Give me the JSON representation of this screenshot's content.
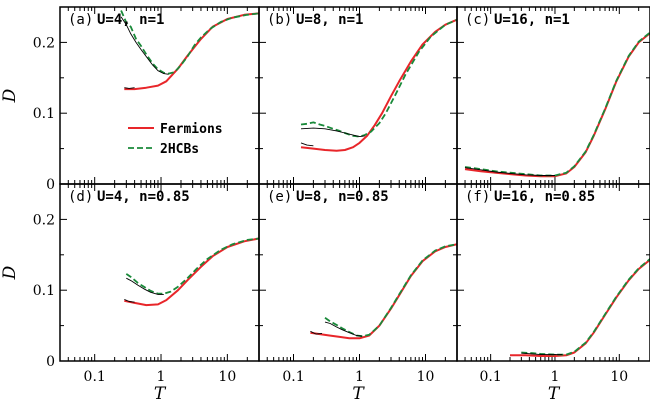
{
  "colors": {
    "fermions": "#e8262a",
    "hcb": "#1a8a3a",
    "thin": "#000000",
    "frame": "#000000"
  },
  "legend": {
    "fermions": "Fermions",
    "hcb": "2HCBs"
  },
  "axes": {
    "xlabel": "T",
    "ylabel": "D",
    "xscale": "log",
    "xlim": [
      0.03,
      30
    ],
    "ylim_top": [
      0,
      0.25
    ],
    "ylim_bottom": [
      0,
      0.25
    ],
    "x_ticks": [
      {
        "value": 0.1,
        "label": "0.1"
      },
      {
        "value": 1,
        "label": "1"
      },
      {
        "value": 10,
        "label": "10"
      }
    ],
    "y_ticks_top": [
      {
        "value": 0,
        "label": "0"
      },
      {
        "value": 0.1,
        "label": "0.1"
      },
      {
        "value": 0.2,
        "label": "0.2"
      }
    ],
    "y_ticks_bottom": [
      {
        "value": 0,
        "label": "0"
      },
      {
        "value": 0.1,
        "label": "0.1"
      },
      {
        "value": 0.2,
        "label": "0.2"
      }
    ]
  },
  "chart_data": [
    {
      "type": "line",
      "tag": "(a)",
      "title": "U=4, n=1",
      "series": [
        {
          "name": "Fermions",
          "style": "fermions",
          "x": [
            0.28,
            0.4,
            0.6,
            0.9,
            1.2,
            1.8,
            2.5,
            4,
            6,
            10,
            18,
            30
          ],
          "y": [
            0.134,
            0.134,
            0.136,
            0.139,
            0.145,
            0.163,
            0.181,
            0.205,
            0.222,
            0.233,
            0.239,
            0.241
          ]
        },
        {
          "name": "2HCBs",
          "style": "hcb",
          "x": [
            0.25,
            0.3,
            0.35,
            0.42,
            0.5,
            0.6,
            0.75,
            0.9,
            1.1,
            1.3,
            1.6,
            2,
            2.5,
            3.2,
            4,
            5.5,
            8,
            12,
            20,
            30
          ],
          "y": [
            0.245,
            0.228,
            0.222,
            0.205,
            0.195,
            0.183,
            0.17,
            0.162,
            0.157,
            0.156,
            0.158,
            0.168,
            0.18,
            0.196,
            0.207,
            0.219,
            0.229,
            0.235,
            0.239,
            0.241
          ]
        },
        {
          "style": "thin",
          "x": [
            0.25,
            0.3,
            0.35,
            0.42,
            0.5,
            0.6,
            0.75,
            0.9,
            1.1,
            1.3
          ],
          "y": [
            0.236,
            0.225,
            0.212,
            0.2,
            0.19,
            0.18,
            0.168,
            0.16,
            0.156,
            0.155
          ]
        },
        {
          "style": "thin",
          "x": [
            0.28,
            0.33,
            0.4
          ],
          "y": [
            0.136,
            0.135,
            0.136
          ]
        }
      ]
    },
    {
      "type": "line",
      "tag": "(b)",
      "title": "U=8, n=1",
      "series": [
        {
          "name": "Fermions",
          "style": "fermions",
          "x": [
            0.13,
            0.2,
            0.3,
            0.45,
            0.6,
            0.8,
            1,
            1.3,
            1.7,
            2.2,
            3,
            4,
            6,
            9,
            14,
            20,
            30
          ],
          "y": [
            0.052,
            0.05,
            0.048,
            0.047,
            0.048,
            0.052,
            0.058,
            0.068,
            0.083,
            0.1,
            0.124,
            0.145,
            0.173,
            0.197,
            0.215,
            0.225,
            0.232
          ]
        },
        {
          "name": "2HCBs",
          "style": "hcb",
          "x": [
            0.13,
            0.16,
            0.2,
            0.25,
            0.3,
            0.4,
            0.5,
            0.6,
            0.8,
            1,
            1.2,
            1.5,
            2,
            2.5,
            3.5,
            5,
            8,
            12,
            20,
            30
          ],
          "y": [
            0.084,
            0.085,
            0.087,
            0.084,
            0.082,
            0.078,
            0.075,
            0.072,
            0.068,
            0.067,
            0.069,
            0.074,
            0.086,
            0.1,
            0.126,
            0.155,
            0.187,
            0.208,
            0.225,
            0.232
          ]
        },
        {
          "style": "thin",
          "x": [
            0.13,
            0.2,
            0.3,
            0.45,
            0.6,
            0.8,
            1,
            1.2
          ],
          "y": [
            0.078,
            0.079,
            0.078,
            0.075,
            0.072,
            0.069,
            0.067,
            0.068
          ]
        },
        {
          "style": "thin",
          "x": [
            0.13,
            0.16,
            0.2
          ],
          "y": [
            0.058,
            0.055,
            0.054
          ]
        }
      ]
    },
    {
      "type": "line",
      "tag": "(c)",
      "title": "U=16, n=1",
      "series": [
        {
          "name": "Fermions",
          "style": "fermions",
          "x": [
            0.04,
            0.07,
            0.12,
            0.2,
            0.35,
            0.6,
            1,
            1.5,
            2,
            3,
            4,
            6,
            9,
            14,
            20,
            30
          ],
          "y": [
            0.021,
            0.018,
            0.016,
            0.014,
            0.012,
            0.011,
            0.011,
            0.015,
            0.024,
            0.045,
            0.068,
            0.105,
            0.145,
            0.18,
            0.2,
            0.213
          ]
        },
        {
          "name": "2HCBs",
          "style": "hcb",
          "x": [
            0.04,
            0.07,
            0.12,
            0.2,
            0.35,
            0.6,
            1,
            1.5,
            2,
            3,
            4,
            6,
            9,
            14,
            20,
            30
          ],
          "y": [
            0.024,
            0.021,
            0.018,
            0.016,
            0.014,
            0.012,
            0.012,
            0.016,
            0.025,
            0.046,
            0.069,
            0.106,
            0.146,
            0.181,
            0.201,
            0.214
          ]
        },
        {
          "style": "thin",
          "x": [
            0.04,
            0.07,
            0.12,
            0.2,
            0.35,
            0.6,
            1
          ],
          "y": [
            0.023,
            0.02,
            0.017,
            0.015,
            0.013,
            0.012,
            0.012
          ]
        }
      ]
    },
    {
      "type": "line",
      "tag": "(d)",
      "title": "U=4, n=0.85",
      "series": [
        {
          "name": "Fermions",
          "style": "fermions",
          "x": [
            0.28,
            0.4,
            0.6,
            0.9,
            1.2,
            1.8,
            2.5,
            4,
            6,
            10,
            18,
            30
          ],
          "y": [
            0.085,
            0.082,
            0.079,
            0.08,
            0.086,
            0.1,
            0.114,
            0.133,
            0.148,
            0.161,
            0.169,
            0.173
          ]
        },
        {
          "name": "2HCBs",
          "style": "hcb",
          "x": [
            0.3,
            0.36,
            0.45,
            0.55,
            0.7,
            0.9,
            1.1,
            1.4,
            1.8,
            2.5,
            3.5,
            5,
            8,
            12,
            20,
            30
          ],
          "y": [
            0.123,
            0.118,
            0.11,
            0.105,
            0.099,
            0.095,
            0.095,
            0.098,
            0.105,
            0.117,
            0.131,
            0.144,
            0.157,
            0.165,
            0.171,
            0.173
          ]
        },
        {
          "style": "thin",
          "x": [
            0.3,
            0.36,
            0.45,
            0.55,
            0.7,
            0.9,
            1.1
          ],
          "y": [
            0.117,
            0.113,
            0.107,
            0.102,
            0.097,
            0.094,
            0.094
          ]
        },
        {
          "style": "thin",
          "x": [
            0.28,
            0.33,
            0.4
          ],
          "y": [
            0.087,
            0.084,
            0.083
          ]
        }
      ]
    },
    {
      "type": "line",
      "tag": "(e)",
      "title": "U=8, n=0.85",
      "series": [
        {
          "name": "Fermions",
          "style": "fermions",
          "x": [
            0.18,
            0.25,
            0.35,
            0.5,
            0.7,
            1,
            1.4,
            2,
            3,
            4,
            6,
            9,
            14,
            20,
            30
          ],
          "y": [
            0.04,
            0.038,
            0.036,
            0.034,
            0.032,
            0.032,
            0.036,
            0.05,
            0.074,
            0.093,
            0.12,
            0.141,
            0.155,
            0.161,
            0.165
          ]
        },
        {
          "name": "2HCBs",
          "style": "hcb",
          "x": [
            0.3,
            0.36,
            0.45,
            0.55,
            0.7,
            0.9,
            1.1,
            1.4,
            2,
            3,
            4,
            6,
            9,
            14,
            20,
            30
          ],
          "y": [
            0.061,
            0.056,
            0.051,
            0.046,
            0.041,
            0.036,
            0.035,
            0.037,
            0.05,
            0.075,
            0.094,
            0.121,
            0.142,
            0.156,
            0.162,
            0.165
          ]
        },
        {
          "style": "thin",
          "x": [
            0.3,
            0.36,
            0.45,
            0.55,
            0.7,
            0.9,
            1.1
          ],
          "y": [
            0.055,
            0.053,
            0.048,
            0.044,
            0.04,
            0.036,
            0.035
          ]
        },
        {
          "style": "thin",
          "x": [
            0.18,
            0.22,
            0.27
          ],
          "y": [
            0.042,
            0.038,
            0.039
          ]
        }
      ]
    },
    {
      "type": "line",
      "tag": "(f)",
      "title": "U=16, n=0.85",
      "series": [
        {
          "name": "Fermions",
          "style": "fermions",
          "x": [
            0.2,
            0.35,
            0.6,
            1,
            1.5,
            2,
            3,
            4,
            6,
            9,
            14,
            20,
            30
          ],
          "y": [
            0.008,
            0.008,
            0.007,
            0.007,
            0.008,
            0.012,
            0.025,
            0.04,
            0.065,
            0.09,
            0.114,
            0.13,
            0.143
          ]
        },
        {
          "name": "2HCBs",
          "style": "hcb",
          "x": [
            0.3,
            0.45,
            0.6,
            1,
            1.5,
            2,
            3,
            4,
            6,
            9,
            14,
            20,
            30
          ],
          "y": [
            0.012,
            0.011,
            0.01,
            0.009,
            0.009,
            0.013,
            0.026,
            0.041,
            0.066,
            0.091,
            0.115,
            0.131,
            0.144
          ]
        },
        {
          "style": "thin",
          "x": [
            0.3,
            0.45,
            0.6,
            1,
            1.3
          ],
          "y": [
            0.011,
            0.01,
            0.009,
            0.009,
            0.009
          ]
        }
      ]
    }
  ]
}
